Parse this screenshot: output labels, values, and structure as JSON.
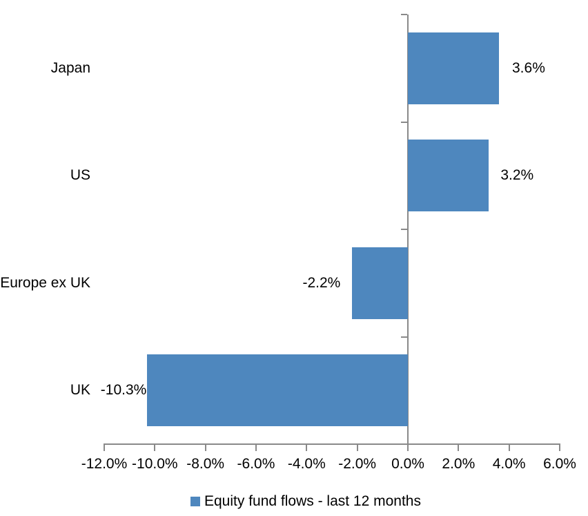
{
  "chart_data": {
    "type": "bar",
    "orientation": "horizontal",
    "title": "",
    "xlabel": "",
    "ylabel": "",
    "categories": [
      "Japan",
      "US",
      "Europe ex UK",
      "UK"
    ],
    "values": [
      3.6,
      3.2,
      -2.2,
      -10.3
    ],
    "data_labels": [
      "3.6%",
      "3.2%",
      "-2.2%",
      "-10.3%"
    ],
    "series": [
      {
        "name": "Equity fund flows - last 12 months",
        "values": [
          3.6,
          3.2,
          -2.2,
          -10.3
        ]
      }
    ],
    "x_axis": {
      "min": -12,
      "max": 6,
      "tick_step": 2,
      "tick_labels": [
        "-12.0%",
        "-10.0%",
        "-8.0%",
        "-6.0%",
        "-4.0%",
        "-2.0%",
        "0.0%",
        "2.0%",
        "4.0%",
        "6.0%"
      ]
    },
    "grid": false,
    "legend_position": "bottom",
    "colors": {
      "bar": "#4E87BE",
      "axis": "#898989",
      "text": "#000000",
      "background": "#FFFFFF"
    }
  },
  "legend": {
    "label": "Equity fund flows - last 12 months"
  }
}
